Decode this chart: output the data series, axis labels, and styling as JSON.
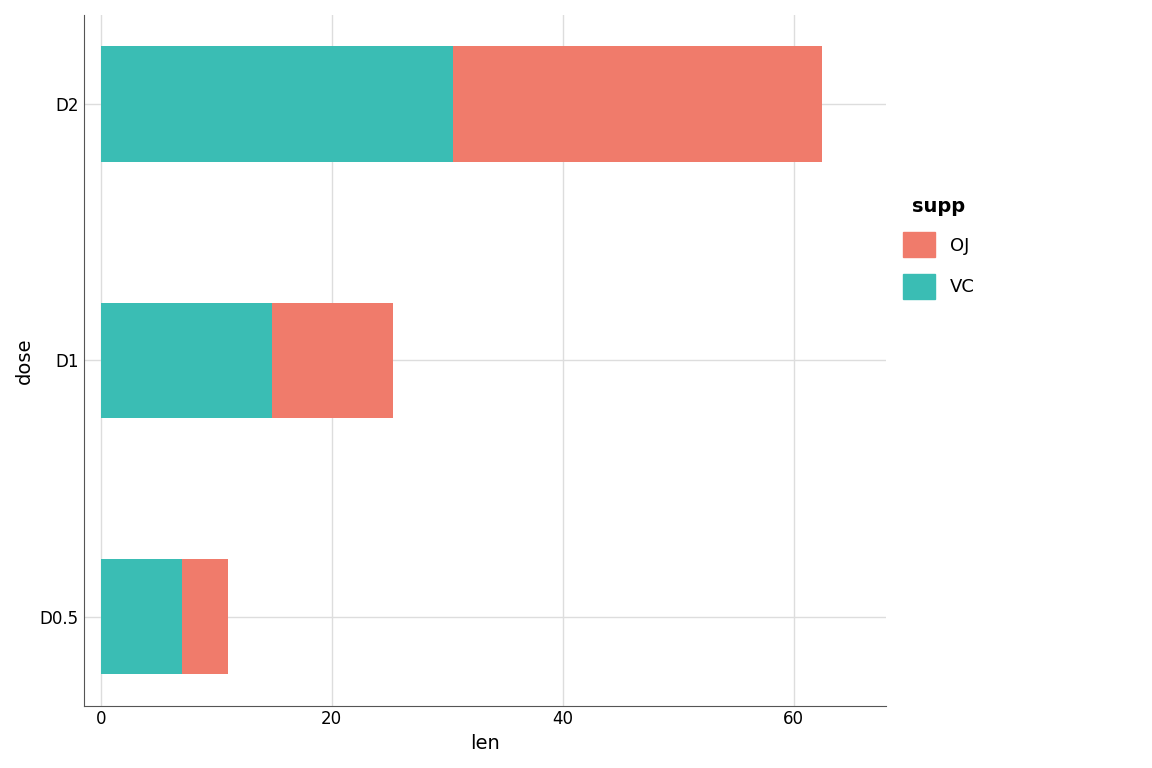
{
  "categories": [
    "D0.5",
    "D1",
    "D2"
  ],
  "vc_values": [
    7.0,
    14.8,
    30.5
  ],
  "oj_values": [
    4.0,
    10.5,
    32.0
  ],
  "vc_color": "#3ABDB4",
  "oj_color": "#F07B6B",
  "xlabel": "len",
  "ylabel": "dose",
  "xlim": [
    -1.5,
    68
  ],
  "xticks": [
    0,
    20,
    40,
    60
  ],
  "background_color": "#FFFFFF",
  "panel_background": "#FFFFFF",
  "grid_color": "#DDDDDD",
  "legend_title": "supp",
  "bar_height": 0.45,
  "axis_label_fontsize": 14,
  "tick_fontsize": 12,
  "legend_fontsize": 13,
  "legend_title_fontsize": 14
}
